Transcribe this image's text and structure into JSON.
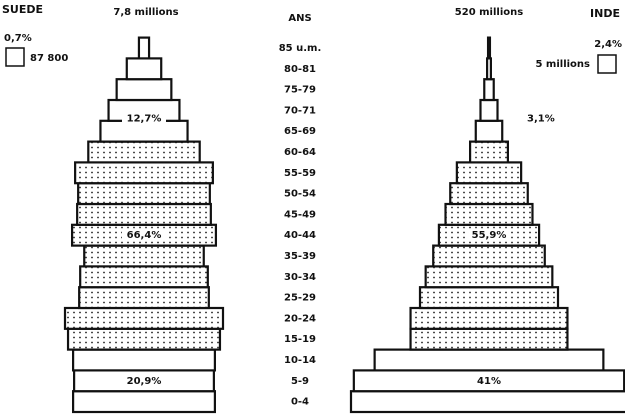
{
  "age_axis": {
    "title": "ANS",
    "categories": [
      "0-4",
      "5-9",
      "10-14",
      "15-19",
      "20-24",
      "25-29",
      "30-34",
      "35-39",
      "40-44",
      "45-49",
      "50-54",
      "55-59",
      "60-64",
      "65-69",
      "70-71",
      "75-79",
      "80-81",
      "85 u.m."
    ]
  },
  "chart_data": [
    {
      "type": "pyramid",
      "title": "SUEDE",
      "total": "7,8 millions",
      "legend": {
        "percent": "0,7%",
        "count": "87 800"
      },
      "values": [
        7.0,
        6.9,
        7.0,
        7.5,
        7.8,
        6.4,
        6.3,
        5.9,
        7.1,
        6.6,
        6.5,
        6.8,
        5.5,
        4.3,
        3.5,
        2.7,
        1.7,
        0.5
      ],
      "annotations": [
        "20,9%",
        "66,4%",
        "12,7%"
      ],
      "color": "#ffffff"
    },
    {
      "type": "pyramid",
      "title": "INDE",
      "total": "520 millions",
      "legend": {
        "percent": "2,4%",
        "count": "5 millions"
      },
      "values": [
        14.6,
        14.3,
        12.1,
        8.3,
        8.3,
        7.3,
        6.7,
        5.9,
        5.3,
        4.6,
        4.1,
        3.4,
        2.0,
        1.4,
        0.9,
        0.5,
        0.2,
        0.1
      ],
      "annotations": [
        "41%",
        "55,9%",
        "3,1%"
      ],
      "color": "#ffffff"
    }
  ]
}
